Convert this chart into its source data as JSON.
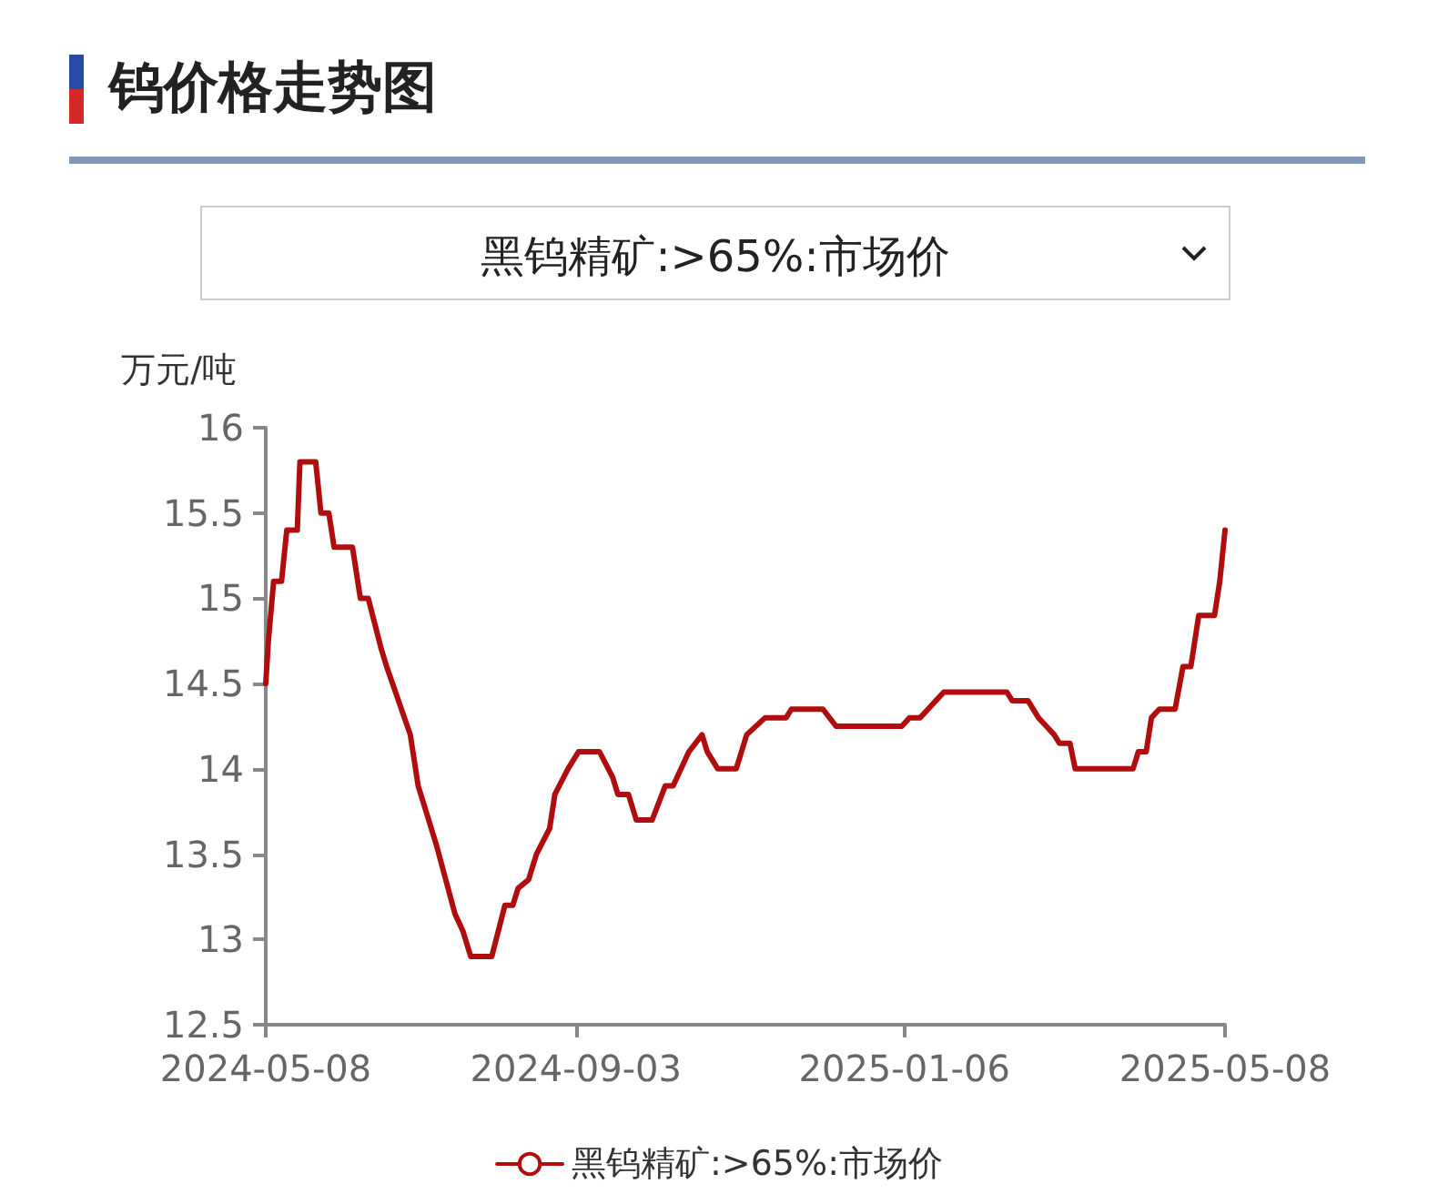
{
  "chart_data": {
    "type": "line",
    "title": "钨价格走势图",
    "subtitle": "黑钨精矿:>65%:市场价",
    "ylabel": "万元/吨",
    "x": [
      "2024-05-08",
      "2024-05-09",
      "2024-05-11",
      "2024-05-14",
      "2024-05-16",
      "2024-05-20",
      "2024-05-21",
      "2024-05-27",
      "2024-05-29",
      "2024-06-01",
      "2024-06-03",
      "2024-06-10",
      "2024-06-13",
      "2024-06-16",
      "2024-06-21",
      "2024-06-23",
      "2024-07-02",
      "2024-07-05",
      "2024-07-12",
      "2024-07-19",
      "2024-07-22",
      "2024-07-25",
      "2024-08-02",
      "2024-08-07",
      "2024-08-10",
      "2024-08-12",
      "2024-08-16",
      "2024-08-19",
      "2024-08-24",
      "2024-08-26",
      "2024-08-31",
      "2024-09-04",
      "2024-09-12",
      "2024-09-17",
      "2024-09-19",
      "2024-09-23",
      "2024-09-26",
      "2024-10-02",
      "2024-10-07",
      "2024-10-10",
      "2024-10-16",
      "2024-10-21",
      "2024-10-23",
      "2024-10-27",
      "2024-11-03",
      "2024-11-07",
      "2024-11-14",
      "2024-11-22",
      "2024-11-24",
      "2024-12-06",
      "2024-12-11",
      "2024-12-15",
      "2025-01-05",
      "2025-01-08",
      "2025-01-12",
      "2025-01-15",
      "2025-01-18",
      "2025-01-21",
      "2025-02-14",
      "2025-02-16",
      "2025-02-22",
      "2025-02-26",
      "2025-03-01",
      "2025-03-04",
      "2025-03-06",
      "2025-03-10",
      "2025-03-12",
      "2025-04-03",
      "2025-04-05",
      "2025-04-08",
      "2025-04-10",
      "2025-04-13",
      "2025-04-19",
      "2025-04-22",
      "2025-04-25",
      "2025-04-28",
      "2025-05-04",
      "2025-05-06",
      "2025-05-08"
    ],
    "series": [
      {
        "name": "黑钨精矿:>65%:市场价",
        "color": "#b00e0e",
        "values": [
          14.5,
          14.75,
          15.1,
          15.1,
          15.4,
          15.4,
          15.8,
          15.8,
          15.5,
          15.5,
          15.3,
          15.3,
          15.0,
          15.0,
          14.7,
          14.6,
          14.2,
          13.9,
          13.55,
          13.15,
          13.05,
          12.9,
          12.9,
          13.2,
          13.2,
          13.3,
          13.35,
          13.5,
          13.65,
          13.85,
          14.0,
          14.1,
          14.1,
          13.95,
          13.85,
          13.85,
          13.7,
          13.7,
          13.9,
          13.9,
          14.1,
          14.2,
          14.1,
          14.0,
          14.0,
          14.2,
          14.3,
          14.3,
          14.35,
          14.35,
          14.25,
          14.25,
          14.25,
          14.3,
          14.3,
          14.35,
          14.4,
          14.45,
          14.45,
          14.4,
          14.4,
          14.3,
          14.25,
          14.2,
          14.15,
          14.15,
          14.0,
          14.0,
          14.1,
          14.1,
          14.3,
          14.35,
          14.35,
          14.6,
          14.6,
          14.9,
          14.9,
          15.1,
          15.4
        ]
      }
    ],
    "xlim": [
      "2024-05-08",
      "2025-05-08"
    ],
    "xticks": [
      "2024-05-08",
      "2024-09-03",
      "2025-01-06",
      "2025-05-08"
    ],
    "ylim": [
      12.5,
      16
    ],
    "yticks": [
      12.5,
      13,
      13.5,
      14,
      14.5,
      15,
      15.5,
      16
    ],
    "grid": false,
    "legend": "bottom",
    "marker": "none",
    "line_style": "solid"
  }
}
